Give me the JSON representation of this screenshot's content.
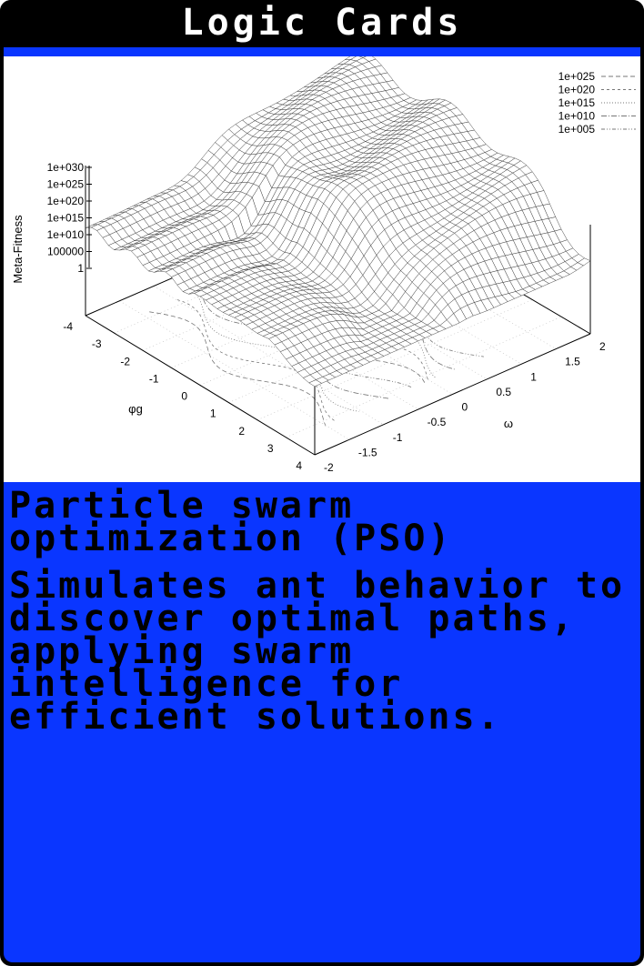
{
  "header": {
    "title": "Logic Cards"
  },
  "card": {
    "title": "Particle swarm optimization (PSO)",
    "description": "Simulates ant behavior to discover optimal paths, applying swarm intelligence for efficient solutions."
  },
  "colors": {
    "border": "#000000",
    "accent": "#0a36ff",
    "plot_bg": "#ffffff",
    "text": "#000000"
  },
  "chart_data": {
    "type": "surface3d",
    "z_axis": {
      "label": "Meta-Fitness",
      "ticks": [
        "1e+030",
        "1e+025",
        "1e+020",
        "1e+015",
        "1e+010",
        "100000",
        "1"
      ],
      "scale": "log"
    },
    "phi_axis": {
      "label": "φg",
      "ticks": [
        "-4",
        "-3",
        "-2",
        "-1",
        "0",
        "1",
        "2",
        "3",
        "4"
      ],
      "range": [
        -4,
        4
      ]
    },
    "omega_axis": {
      "label": "ω",
      "ticks": [
        "-2",
        "-1.5",
        "-1",
        "-0.5",
        "0",
        "0.5",
        "1",
        "1.5",
        "2"
      ],
      "range": [
        -2,
        2
      ]
    },
    "legend": {
      "placement": "top-right",
      "entries": [
        "1e+025",
        "1e+020",
        "1e+015",
        "1e+010",
        "1e+005"
      ]
    }
  }
}
